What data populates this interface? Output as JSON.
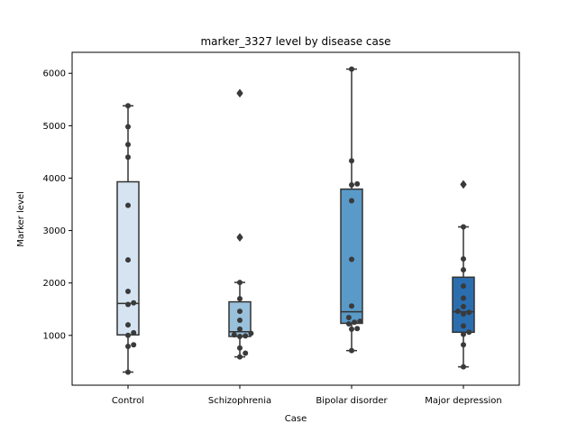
{
  "chart_data": {
    "type": "box",
    "title": "marker_3327 level by disease case",
    "xlabel": "Case",
    "ylabel": "Marker level",
    "ylim": [
      50,
      6400
    ],
    "yticks": [
      1000,
      2000,
      3000,
      4000,
      5000,
      6000
    ],
    "grid": false,
    "categories": [
      "Control",
      "Schizophrenia",
      "Bipolar disorder",
      "Major depression"
    ],
    "box_colors": [
      "#d6e4f2",
      "#9ac1dc",
      "#5a9ac8",
      "#2a6eb0"
    ],
    "boxes": [
      {
        "category": "Control",
        "whisker_low": 300,
        "q1": 1010,
        "median": 1610,
        "q3": 3930,
        "whisker_high": 5380,
        "outliers": []
      },
      {
        "category": "Schizophrenia",
        "whisker_low": 590,
        "q1": 980,
        "median": 1070,
        "q3": 1640,
        "whisker_high": 2010,
        "outliers": [
          2870,
          5620
        ]
      },
      {
        "category": "Bipolar disorder",
        "whisker_low": 710,
        "q1": 1230,
        "median": 1450,
        "q3": 3790,
        "whisker_high": 6080,
        "outliers": []
      },
      {
        "category": "Major depression",
        "whisker_low": 400,
        "q1": 1060,
        "median": 1450,
        "q3": 2110,
        "whisker_high": 3070,
        "outliers": [
          3880
        ]
      }
    ],
    "points": [
      {
        "category": "Control",
        "values": [
          5380,
          4980,
          4640,
          4400,
          3480,
          2440,
          1840,
          1620,
          1590,
          1200,
          1050,
          1000,
          820,
          790,
          300
        ]
      },
      {
        "category": "Schizophrenia",
        "values": [
          5620,
          2870,
          2010,
          1700,
          1460,
          1290,
          1120,
          1040,
          1010,
          990,
          980,
          760,
          660,
          590
        ]
      },
      {
        "category": "Bipolar disorder",
        "values": [
          6080,
          4330,
          3890,
          3870,
          3570,
          2450,
          1560,
          1340,
          1270,
          1250,
          1220,
          1130,
          1120,
          710
        ]
      },
      {
        "category": "Major depression",
        "values": [
          3880,
          3070,
          2460,
          2250,
          1940,
          1710,
          1550,
          1460,
          1440,
          1410,
          1180,
          1060,
          1020,
          820,
          400
        ]
      }
    ]
  }
}
